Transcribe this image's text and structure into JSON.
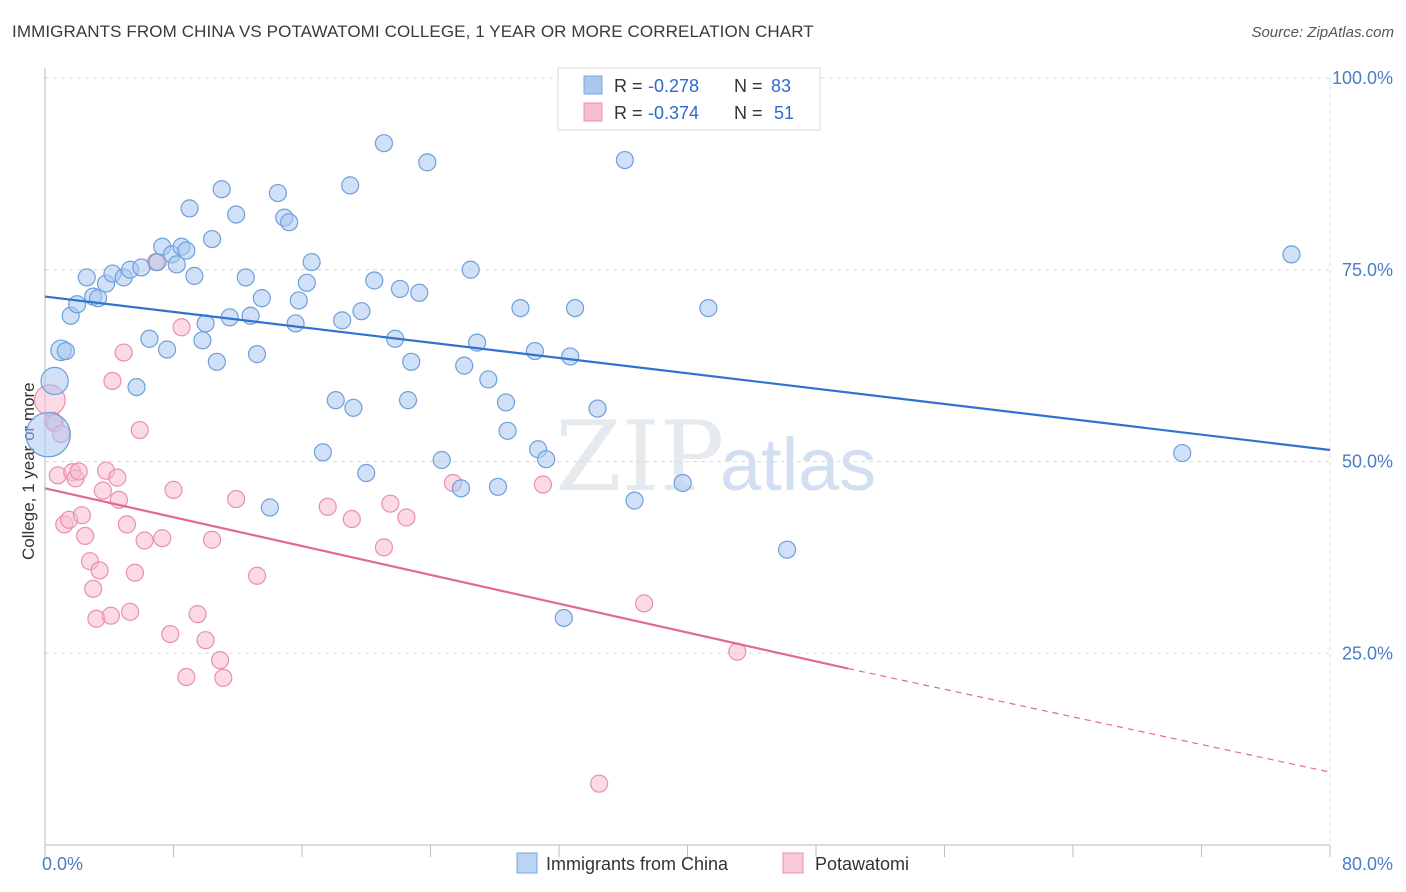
{
  "header": {
    "title": "IMMIGRANTS FROM CHINA VS POTAWATOMI COLLEGE, 1 YEAR OR MORE CORRELATION CHART",
    "source": "Source: ZipAtlas.com"
  },
  "watermark": {
    "zip": "ZIP",
    "atlas": "atlas"
  },
  "legend_box": {
    "rows": [
      {
        "r_label": "R =",
        "r_value": "-0.278",
        "n_label": "N =",
        "n_value": "83",
        "color": "#a9c8f0",
        "stroke": "#7aa6e0"
      },
      {
        "r_label": "R =",
        "r_value": "-0.374",
        "n_label": "N =",
        "n_value": "51",
        "color": "#f7bcd0",
        "stroke": "#ec8fb0"
      }
    ]
  },
  "chart_data": {
    "type": "scatter",
    "xlabel": "",
    "ylabel": "College, 1 year or more",
    "xlim": [
      0,
      80
    ],
    "ylim": [
      0,
      100
    ],
    "x_tick_labels": [
      "0.0%",
      "80.0%"
    ],
    "y_tick_labels": [
      "25.0%",
      "50.0%",
      "75.0%",
      "100.0%"
    ],
    "y_ticks": [
      25,
      50,
      75,
      100
    ],
    "grid": true,
    "series": [
      {
        "name": "Immigrants from China",
        "color": "#a9c8f0",
        "stroke": "#6e9fdc",
        "trend_color": "#2f72d0",
        "trend": {
          "x0": 0,
          "y0": 71.5,
          "x1": 80,
          "y1": 51.5
        },
        "points": [
          [
            0.2,
            53.5,
            2.6
          ],
          [
            0.6,
            60.5,
            1.6
          ],
          [
            1.0,
            64.5,
            1.2
          ],
          [
            1.3,
            64.4,
            1.0
          ],
          [
            1.6,
            69.0,
            1.0
          ],
          [
            2.0,
            70.5,
            1.0
          ],
          [
            2.6,
            74.0,
            1.0
          ],
          [
            3.0,
            71.5,
            1.0
          ],
          [
            3.3,
            71.3,
            1.0
          ],
          [
            3.8,
            73.2,
            1.0
          ],
          [
            4.2,
            74.5,
            1.0
          ],
          [
            4.9,
            74.0,
            1.0
          ],
          [
            5.3,
            75.0,
            1.0
          ],
          [
            5.7,
            59.7,
            1.0
          ],
          [
            6.0,
            75.3,
            1.0
          ],
          [
            6.5,
            66.0,
            1.0
          ],
          [
            7.0,
            76.0,
            1.0
          ],
          [
            7.3,
            78.0,
            1.0
          ],
          [
            7.6,
            64.6,
            1.0
          ],
          [
            7.9,
            77.0,
            1.0
          ],
          [
            8.2,
            75.7,
            1.0
          ],
          [
            8.5,
            78.0,
            1.0
          ],
          [
            8.8,
            77.5,
            1.0
          ],
          [
            9.0,
            83.0,
            1.0
          ],
          [
            9.3,
            74.2,
            1.0
          ],
          [
            9.8,
            65.8,
            1.0
          ],
          [
            10.0,
            68.0,
            1.0
          ],
          [
            10.4,
            79.0,
            1.0
          ],
          [
            10.7,
            63.0,
            1.0
          ],
          [
            11.0,
            85.5,
            1.0
          ],
          [
            11.5,
            68.8,
            1.0
          ],
          [
            11.9,
            82.2,
            1.0
          ],
          [
            12.5,
            74.0,
            1.0
          ],
          [
            12.8,
            69.0,
            1.0
          ],
          [
            13.2,
            64.0,
            1.0
          ],
          [
            13.5,
            71.3,
            1.0
          ],
          [
            14.0,
            44.0,
            1.0
          ],
          [
            14.5,
            85.0,
            1.0
          ],
          [
            14.9,
            81.8,
            1.0
          ],
          [
            15.2,
            81.2,
            1.0
          ],
          [
            15.6,
            68.0,
            1.0
          ],
          [
            15.8,
            71.0,
            1.0
          ],
          [
            16.3,
            73.3,
            1.0
          ],
          [
            16.6,
            76.0,
            1.0
          ],
          [
            17.3,
            51.2,
            1.0
          ],
          [
            18.1,
            58.0,
            1.0
          ],
          [
            18.5,
            68.4,
            1.0
          ],
          [
            19.0,
            86.0,
            1.0
          ],
          [
            19.2,
            57.0,
            1.0
          ],
          [
            19.7,
            69.6,
            1.0
          ],
          [
            20.0,
            48.5,
            1.0
          ],
          [
            20.5,
            73.6,
            1.0
          ],
          [
            21.1,
            91.5,
            1.0
          ],
          [
            21.8,
            66.0,
            1.0
          ],
          [
            22.1,
            72.5,
            1.0
          ],
          [
            22.6,
            58.0,
            1.0
          ],
          [
            22.8,
            63.0,
            1.0
          ],
          [
            23.3,
            72.0,
            1.0
          ],
          [
            23.8,
            89.0,
            1.0
          ],
          [
            24.7,
            50.2,
            1.0
          ],
          [
            25.9,
            46.5,
            1.0
          ],
          [
            26.1,
            62.5,
            1.0
          ],
          [
            26.5,
            75.0,
            1.0
          ],
          [
            26.9,
            65.5,
            1.0
          ],
          [
            27.6,
            60.7,
            1.0
          ],
          [
            28.2,
            46.7,
            1.0
          ],
          [
            28.7,
            57.7,
            1.0
          ],
          [
            28.8,
            54.0,
            1.0
          ],
          [
            29.6,
            70.0,
            1.0
          ],
          [
            30.5,
            64.4,
            1.0
          ],
          [
            30.7,
            51.6,
            1.0
          ],
          [
            31.2,
            50.3,
            1.0
          ],
          [
            32.3,
            29.6,
            1.0
          ],
          [
            32.7,
            63.7,
            1.0
          ],
          [
            33.0,
            70.0,
            1.0
          ],
          [
            34.4,
            56.9,
            1.0
          ],
          [
            36.1,
            89.3,
            1.0
          ],
          [
            36.7,
            44.9,
            1.0
          ],
          [
            39.7,
            47.2,
            1.0
          ],
          [
            41.3,
            70.0,
            1.0
          ],
          [
            46.2,
            38.5,
            1.0
          ],
          [
            70.8,
            51.1,
            1.0
          ],
          [
            77.6,
            77.0,
            1.0
          ]
        ]
      },
      {
        "name": "Potawatomi",
        "color": "#f7bcd0",
        "stroke": "#e98fae",
        "trend_color": "#e0679a",
        "trend": {
          "x0": 0,
          "y0": 46.5,
          "x1": 50,
          "y1": 23.0
        },
        "trend_dash": {
          "x0": 50,
          "y0": 23.0,
          "x1": 80,
          "y1": 9.5
        },
        "points": [
          [
            0.3,
            58.0,
            1.8
          ],
          [
            0.5,
            55.3,
            1.0
          ],
          [
            0.6,
            55.0,
            1.0
          ],
          [
            0.8,
            48.2,
            1.0
          ],
          [
            1.0,
            53.6,
            1.0
          ],
          [
            1.2,
            41.8,
            1.0
          ],
          [
            1.5,
            42.4,
            1.0
          ],
          [
            1.7,
            48.6,
            1.0
          ],
          [
            1.9,
            47.8,
            1.0
          ],
          [
            2.1,
            48.7,
            1.0
          ],
          [
            2.3,
            43.0,
            1.0
          ],
          [
            2.5,
            40.3,
            1.0
          ],
          [
            2.8,
            37.0,
            1.0
          ],
          [
            3.0,
            33.4,
            1.0
          ],
          [
            3.2,
            29.5,
            1.0
          ],
          [
            3.4,
            35.8,
            1.0
          ],
          [
            3.6,
            46.2,
            1.0
          ],
          [
            3.8,
            48.8,
            1.0
          ],
          [
            4.1,
            29.9,
            1.0
          ],
          [
            4.2,
            60.5,
            1.0
          ],
          [
            4.5,
            47.9,
            1.0
          ],
          [
            4.6,
            45.0,
            1.0
          ],
          [
            4.9,
            64.2,
            1.0
          ],
          [
            5.1,
            41.8,
            1.0
          ],
          [
            5.3,
            30.4,
            1.0
          ],
          [
            5.6,
            35.5,
            1.0
          ],
          [
            5.9,
            54.1,
            1.0
          ],
          [
            6.2,
            39.7,
            1.0
          ],
          [
            6.9,
            76.0,
            1.0
          ],
          [
            7.3,
            40.0,
            1.0
          ],
          [
            7.8,
            27.5,
            1.0
          ],
          [
            8.0,
            46.3,
            1.0
          ],
          [
            8.5,
            67.5,
            1.0
          ],
          [
            8.8,
            21.9,
            1.0
          ],
          [
            9.5,
            30.1,
            1.0
          ],
          [
            10.0,
            26.7,
            1.0
          ],
          [
            10.4,
            39.8,
            1.0
          ],
          [
            10.9,
            24.1,
            1.0
          ],
          [
            11.1,
            21.8,
            1.0
          ],
          [
            11.9,
            45.1,
            1.0
          ],
          [
            13.2,
            35.1,
            1.0
          ],
          [
            17.6,
            44.1,
            1.0
          ],
          [
            19.1,
            42.5,
            1.0
          ],
          [
            21.1,
            38.8,
            1.0
          ],
          [
            21.5,
            44.5,
            1.0
          ],
          [
            22.5,
            42.7,
            1.0
          ],
          [
            25.4,
            47.2,
            1.0
          ],
          [
            31.0,
            47.0,
            1.0
          ],
          [
            34.5,
            8.0,
            1.0
          ],
          [
            37.3,
            31.5,
            1.0
          ],
          [
            43.1,
            25.2,
            1.0
          ]
        ]
      }
    ],
    "legend_position": "bottom"
  }
}
